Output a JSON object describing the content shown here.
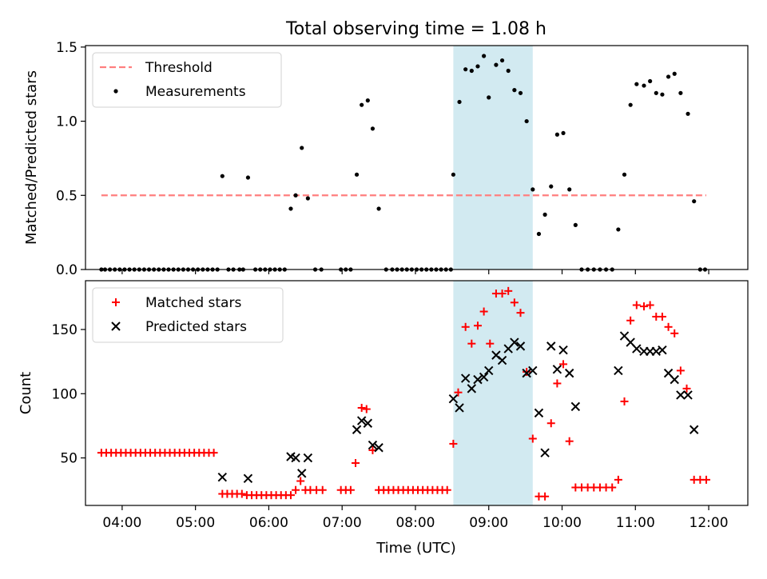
{
  "title": "Total observing time = 1.08 h",
  "xlabel": "Time (UTC)",
  "colors": {
    "threshold": "#ff7f7f",
    "measurement": "#000000",
    "matched": "#ff0000",
    "predicted": "#000000",
    "observing_window": "#add8e6"
  },
  "chart_data": [
    {
      "type": "scatter",
      "ylabel": "Matched/Predicted stars",
      "ylim": [
        0,
        1.51
      ],
      "xlim": [
        "03:30",
        "12:32"
      ],
      "yticks": [
        "0.0",
        "0.5",
        "1.0",
        "1.5"
      ],
      "ytick_values": [
        0,
        0.5,
        1.0,
        1.5
      ],
      "xticks": [
        "04:00",
        "05:00",
        "06:00",
        "07:00",
        "08:00",
        "09:00",
        "10:00",
        "11:00",
        "12:00"
      ],
      "show_xticklabels": false,
      "grid": false,
      "legend": "top-left",
      "legend_entries": [
        "Threshold",
        "Measurements"
      ],
      "highlight_window": [
        "08:31",
        "09:36"
      ],
      "threshold": {
        "name": "Threshold",
        "value": 0.5,
        "x_range": [
          "03:43",
          "11:58"
        ]
      },
      "measurements": {
        "name": "Measurements",
        "points": [
          [
            "03:43",
            0
          ],
          [
            "03:46",
            0
          ],
          [
            "03:50",
            0
          ],
          [
            "03:54",
            0
          ],
          [
            "03:58",
            0
          ],
          [
            "04:02",
            0
          ],
          [
            "04:06",
            0
          ],
          [
            "04:10",
            0
          ],
          [
            "04:14",
            0
          ],
          [
            "04:18",
            0
          ],
          [
            "04:22",
            0
          ],
          [
            "04:26",
            0
          ],
          [
            "04:30",
            0
          ],
          [
            "04:34",
            0
          ],
          [
            "04:38",
            0
          ],
          [
            "04:42",
            0
          ],
          [
            "04:46",
            0
          ],
          [
            "04:50",
            0
          ],
          [
            "04:54",
            0
          ],
          [
            "04:58",
            0
          ],
          [
            "05:02",
            0
          ],
          [
            "05:06",
            0
          ],
          [
            "05:10",
            0
          ],
          [
            "05:14",
            0
          ],
          [
            "05:18",
            0
          ],
          [
            "05:22",
            0.63
          ],
          [
            "05:27",
            0
          ],
          [
            "05:31",
            0
          ],
          [
            "05:36",
            0
          ],
          [
            "05:39",
            0
          ],
          [
            "05:43",
            0.62
          ],
          [
            "05:49",
            0
          ],
          [
            "05:53",
            0
          ],
          [
            "05:57",
            0
          ],
          [
            "06:01",
            0
          ],
          [
            "06:05",
            0
          ],
          [
            "06:09",
            0
          ],
          [
            "06:13",
            0
          ],
          [
            "06:18",
            0.41
          ],
          [
            "06:22",
            0.5
          ],
          [
            "06:27",
            0.82
          ],
          [
            "06:32",
            0.48
          ],
          [
            "06:38",
            0
          ],
          [
            "06:43",
            0
          ],
          [
            "06:59",
            0
          ],
          [
            "07:03",
            0
          ],
          [
            "07:07",
            0
          ],
          [
            "07:12",
            0.64
          ],
          [
            "07:16",
            1.11
          ],
          [
            "07:21",
            1.14
          ],
          [
            "07:25",
            0.95
          ],
          [
            "07:30",
            0.41
          ],
          [
            "07:36",
            0
          ],
          [
            "07:41",
            0
          ],
          [
            "07:45",
            0
          ],
          [
            "07:49",
            0
          ],
          [
            "07:53",
            0
          ],
          [
            "07:57",
            0
          ],
          [
            "08:01",
            0
          ],
          [
            "08:05",
            0
          ],
          [
            "08:09",
            0
          ],
          [
            "08:13",
            0
          ],
          [
            "08:17",
            0
          ],
          [
            "08:21",
            0
          ],
          [
            "08:25",
            0
          ],
          [
            "08:29",
            0
          ],
          [
            "08:31",
            0.64
          ],
          [
            "08:36",
            1.13
          ],
          [
            "08:41",
            1.35
          ],
          [
            "08:46",
            1.34
          ],
          [
            "08:51",
            1.37
          ],
          [
            "08:56",
            1.44
          ],
          [
            "09:00",
            1.16
          ],
          [
            "09:06",
            1.38
          ],
          [
            "09:11",
            1.41
          ],
          [
            "09:16",
            1.34
          ],
          [
            "09:21",
            1.21
          ],
          [
            "09:26",
            1.19
          ],
          [
            "09:31",
            1.0
          ],
          [
            "09:36",
            0.54
          ],
          [
            "09:41",
            0.24
          ],
          [
            "09:46",
            0.37
          ],
          [
            "09:51",
            0.56
          ],
          [
            "09:56",
            0.91
          ],
          [
            "10:01",
            0.92
          ],
          [
            "10:06",
            0.54
          ],
          [
            "10:11",
            0.3
          ],
          [
            "10:16",
            0
          ],
          [
            "10:21",
            0
          ],
          [
            "10:26",
            0
          ],
          [
            "10:31",
            0
          ],
          [
            "10:36",
            0
          ],
          [
            "10:41",
            0
          ],
          [
            "10:46",
            0.27
          ],
          [
            "10:51",
            0.64
          ],
          [
            "10:56",
            1.11
          ],
          [
            "11:01",
            1.25
          ],
          [
            "11:07",
            1.24
          ],
          [
            "11:12",
            1.27
          ],
          [
            "11:17",
            1.19
          ],
          [
            "11:22",
            1.18
          ],
          [
            "11:27",
            1.3
          ],
          [
            "11:32",
            1.32
          ],
          [
            "11:37",
            1.19
          ],
          [
            "11:43",
            1.05
          ],
          [
            "11:48",
            0.46
          ],
          [
            "11:53",
            0
          ],
          [
            "11:57",
            0
          ]
        ]
      }
    },
    {
      "type": "scatter",
      "ylabel": "Count",
      "ylim": [
        13,
        188
      ],
      "xlim": [
        "03:30",
        "12:32"
      ],
      "yticks": [
        "50",
        "100",
        "150"
      ],
      "ytick_values": [
        50,
        100,
        150
      ],
      "xticks": [
        "04:00",
        "05:00",
        "06:00",
        "07:00",
        "08:00",
        "09:00",
        "10:00",
        "11:00",
        "12:00"
      ],
      "show_xticklabels": true,
      "grid": false,
      "legend": "top-left",
      "legend_entries": [
        "Matched stars",
        "Predicted stars"
      ],
      "highlight_window": [
        "08:31",
        "09:36"
      ],
      "series": [
        {
          "name": "Matched stars",
          "marker": "+",
          "points": [
            [
              "03:43",
              54
            ],
            [
              "03:47",
              54
            ],
            [
              "03:51",
              54
            ],
            [
              "03:55",
              54
            ],
            [
              "03:59",
              54
            ],
            [
              "04:03",
              54
            ],
            [
              "04:07",
              54
            ],
            [
              "04:11",
              54
            ],
            [
              "04:15",
              54
            ],
            [
              "04:19",
              54
            ],
            [
              "04:23",
              54
            ],
            [
              "04:27",
              54
            ],
            [
              "04:31",
              54
            ],
            [
              "04:35",
              54
            ],
            [
              "04:39",
              54
            ],
            [
              "04:43",
              54
            ],
            [
              "04:47",
              54
            ],
            [
              "04:51",
              54
            ],
            [
              "04:55",
              54
            ],
            [
              "04:59",
              54
            ],
            [
              "05:03",
              54
            ],
            [
              "05:07",
              54
            ],
            [
              "05:11",
              54
            ],
            [
              "05:15",
              54
            ],
            [
              "05:22",
              22
            ],
            [
              "05:26",
              22
            ],
            [
              "05:30",
              22
            ],
            [
              "05:34",
              22
            ],
            [
              "05:38",
              22
            ],
            [
              "05:42",
              21
            ],
            [
              "05:46",
              21
            ],
            [
              "05:50",
              21
            ],
            [
              "05:54",
              21
            ],
            [
              "05:58",
              21
            ],
            [
              "06:02",
              21
            ],
            [
              "06:06",
              21
            ],
            [
              "06:10",
              21
            ],
            [
              "06:14",
              21
            ],
            [
              "06:18",
              21
            ],
            [
              "06:22",
              25
            ],
            [
              "06:26",
              32
            ],
            [
              "06:30",
              25
            ],
            [
              "06:34",
              25
            ],
            [
              "06:39",
              25
            ],
            [
              "06:44",
              25
            ],
            [
              "06:59",
              25
            ],
            [
              "07:03",
              25
            ],
            [
              "07:07",
              25
            ],
            [
              "07:11",
              46
            ],
            [
              "07:16",
              89
            ],
            [
              "07:20",
              88
            ],
            [
              "07:25",
              56
            ],
            [
              "07:30",
              25
            ],
            [
              "07:34",
              25
            ],
            [
              "07:38",
              25
            ],
            [
              "07:42",
              25
            ],
            [
              "07:46",
              25
            ],
            [
              "07:50",
              25
            ],
            [
              "07:54",
              25
            ],
            [
              "07:58",
              25
            ],
            [
              "08:02",
              25
            ],
            [
              "08:06",
              25
            ],
            [
              "08:10",
              25
            ],
            [
              "08:14",
              25
            ],
            [
              "08:18",
              25
            ],
            [
              "08:22",
              25
            ],
            [
              "08:26",
              25
            ],
            [
              "08:31",
              61
            ],
            [
              "08:35",
              101
            ],
            [
              "08:41",
              152
            ],
            [
              "08:46",
              139
            ],
            [
              "08:51",
              153
            ],
            [
              "08:56",
              164
            ],
            [
              "09:01",
              139
            ],
            [
              "09:06",
              178
            ],
            [
              "09:11",
              178
            ],
            [
              "09:16",
              180
            ],
            [
              "09:21",
              171
            ],
            [
              "09:26",
              163
            ],
            [
              "09:31",
              117
            ],
            [
              "09:36",
              65
            ],
            [
              "09:41",
              20
            ],
            [
              "09:46",
              20
            ],
            [
              "09:51",
              77
            ],
            [
              "09:56",
              108
            ],
            [
              "10:01",
              123
            ],
            [
              "10:06",
              63
            ],
            [
              "10:11",
              27
            ],
            [
              "10:16",
              27
            ],
            [
              "10:21",
              27
            ],
            [
              "10:26",
              27
            ],
            [
              "10:31",
              27
            ],
            [
              "10:36",
              27
            ],
            [
              "10:41",
              27
            ],
            [
              "10:46",
              33
            ],
            [
              "10:51",
              94
            ],
            [
              "10:56",
              157
            ],
            [
              "11:01",
              169
            ],
            [
              "11:07",
              168
            ],
            [
              "11:12",
              169
            ],
            [
              "11:17",
              160
            ],
            [
              "11:22",
              160
            ],
            [
              "11:27",
              152
            ],
            [
              "11:32",
              147
            ],
            [
              "11:37",
              118
            ],
            [
              "11:42",
              104
            ],
            [
              "11:48",
              33
            ],
            [
              "11:53",
              33
            ],
            [
              "11:58",
              33
            ]
          ]
        },
        {
          "name": "Predicted stars",
          "marker": "x",
          "points": [
            [
              "05:22",
              35
            ],
            [
              "05:43",
              34
            ],
            [
              "06:18",
              51
            ],
            [
              "06:22",
              50
            ],
            [
              "06:27",
              38
            ],
            [
              "06:32",
              50
            ],
            [
              "07:12",
              72
            ],
            [
              "07:16",
              79
            ],
            [
              "07:21",
              77
            ],
            [
              "07:25",
              60
            ],
            [
              "07:30",
              58
            ],
            [
              "08:31",
              96
            ],
            [
              "08:36",
              89
            ],
            [
              "08:41",
              112
            ],
            [
              "08:46",
              104
            ],
            [
              "08:51",
              111
            ],
            [
              "08:56",
              113
            ],
            [
              "09:00",
              118
            ],
            [
              "09:06",
              130
            ],
            [
              "09:11",
              126
            ],
            [
              "09:16",
              135
            ],
            [
              "09:21",
              140
            ],
            [
              "09:26",
              137
            ],
            [
              "09:31",
              116
            ],
            [
              "09:36",
              118
            ],
            [
              "09:41",
              85
            ],
            [
              "09:46",
              54
            ],
            [
              "09:51",
              137
            ],
            [
              "09:56",
              119
            ],
            [
              "10:01",
              134
            ],
            [
              "10:06",
              116
            ],
            [
              "10:11",
              90
            ],
            [
              "10:46",
              118
            ],
            [
              "10:51",
              145
            ],
            [
              "10:56",
              140
            ],
            [
              "11:01",
              135
            ],
            [
              "11:07",
              133
            ],
            [
              "11:12",
              133
            ],
            [
              "11:17",
              133
            ],
            [
              "11:22",
              134
            ],
            [
              "11:27",
              116
            ],
            [
              "11:32",
              111
            ],
            [
              "11:37",
              99
            ],
            [
              "11:43",
              99
            ],
            [
              "11:48",
              72
            ]
          ]
        }
      ]
    }
  ]
}
